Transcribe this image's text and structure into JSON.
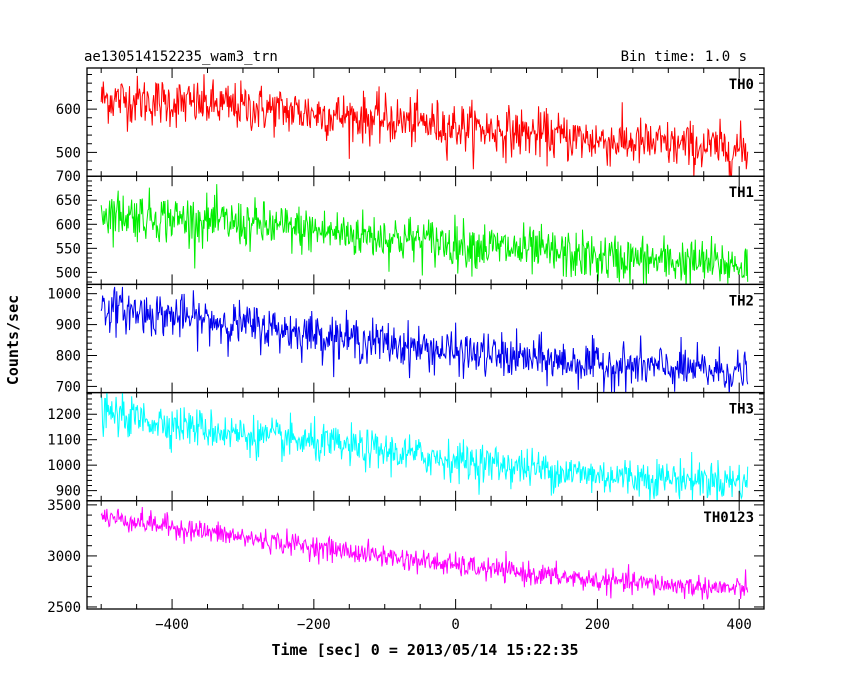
{
  "header": {
    "title": "ae130514152235_wam3_trn",
    "bin_time": "Bin time: 1.0 s"
  },
  "chart_data": {
    "type": "line",
    "xlabel": "Time [sec] 0 = 2013/05/14 15:22:35",
    "ylabel": "Counts/sec",
    "xlim": [
      -520,
      435
    ],
    "x_start": -500,
    "x_end": 412,
    "x_ticks": [
      -400,
      -200,
      0,
      200,
      400
    ],
    "x_tick_labels": [
      "−400",
      "−200",
      "0",
      "200",
      "400"
    ],
    "panels": [
      {
        "name": "TH0",
        "color": "#ff0000",
        "ylim": [
          445,
          695
        ],
        "y_ticks": [
          500,
          600
        ],
        "y_tick_labels": [
          "500",
          "600"
        ],
        "trend": [
          [
            -500,
            625
          ],
          [
            -300,
            605
          ],
          [
            0,
            560
          ],
          [
            200,
            528
          ],
          [
            412,
            505
          ]
        ],
        "noise": 28
      },
      {
        "name": "TH1",
        "color": "#00ee00",
        "ylim": [
          475,
          700
        ],
        "y_ticks": [
          500,
          550,
          600,
          650,
          700
        ],
        "y_tick_labels": [
          "500",
          "550",
          "600",
          "650",
          "700"
        ],
        "trend": [
          [
            -500,
            625
          ],
          [
            -300,
            600
          ],
          [
            0,
            560
          ],
          [
            200,
            530
          ],
          [
            412,
            515
          ]
        ],
        "noise": 25
      },
      {
        "name": "TH2",
        "color": "#0000ee",
        "ylim": [
          680,
          1030
        ],
        "y_ticks": [
          700,
          800,
          900,
          1000
        ],
        "y_tick_labels": [
          "700",
          "800",
          "900",
          "1000"
        ],
        "trend": [
          [
            -500,
            955
          ],
          [
            -300,
            900
          ],
          [
            0,
            810
          ],
          [
            200,
            770
          ],
          [
            412,
            745
          ]
        ],
        "noise": 35
      },
      {
        "name": "TH3",
        "color": "#00ffff",
        "ylim": [
          860,
          1285
        ],
        "y_ticks": [
          900,
          1000,
          1100,
          1200
        ],
        "y_tick_labels": [
          "900",
          "1000",
          "1100",
          "1200"
        ],
        "trend": [
          [
            -500,
            1205
          ],
          [
            -300,
            1120
          ],
          [
            0,
            1020
          ],
          [
            200,
            960
          ],
          [
            412,
            935
          ]
        ],
        "noise": 38
      },
      {
        "name": "TH0123",
        "color": "#ff00ff",
        "ylim": [
          2480,
          3540
        ],
        "y_ticks": [
          2500,
          3000,
          3500
        ],
        "y_tick_labels": [
          "2500",
          "3000",
          "3500"
        ],
        "trend": [
          [
            -500,
            3390
          ],
          [
            -300,
            3180
          ],
          [
            0,
            2905
          ],
          [
            200,
            2755
          ],
          [
            412,
            2670
          ]
        ],
        "noise": 55
      }
    ]
  }
}
